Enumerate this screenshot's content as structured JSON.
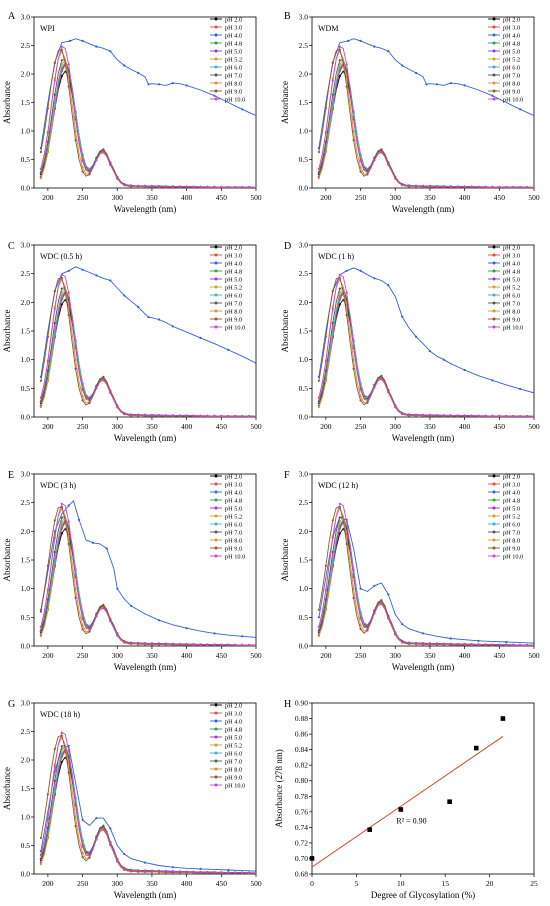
{
  "common": {
    "xlabel": "Wavelength (nm)",
    "ylabel": "Absorbance",
    "xlim": [
      180,
      500
    ],
    "xticks": [
      200,
      250,
      300,
      350,
      400,
      450,
      500
    ],
    "ylim": [
      0,
      3.0
    ],
    "yticks": [
      0.0,
      0.5,
      1.0,
      1.5,
      2.0,
      2.5,
      3.0
    ],
    "series_names": [
      "pH 2.0",
      "pH 3.0",
      "pH 4.0",
      "pH 4.8",
      "pH 5.0",
      "pH 5.2",
      "pH 6.0",
      "pH 7.0",
      "pH 8.0",
      "pH 9.0",
      "pH 10.0"
    ],
    "series_colors": [
      "#000000",
      "#e8463c",
      "#2f5fd8",
      "#2e9e3a",
      "#9b30c8",
      "#cda51b",
      "#46aacf",
      "#555555",
      "#d9922b",
      "#8a5a2b",
      "#cc44cc"
    ],
    "peak_heights": [
      2.05,
      2.15,
      2.6,
      2.2,
      2.18,
      2.25,
      2.2,
      2.28,
      2.4,
      2.45,
      2.5
    ],
    "peak_wavelengths": [
      225,
      225,
      218,
      225,
      225,
      224,
      225,
      223,
      220,
      218,
      222
    ]
  },
  "chart_data": [
    {
      "type": "line",
      "panel": "A",
      "title": "WPI",
      "second_peak": 0.68,
      "tail": 0.03,
      "special": {
        "series": "pH 4.0",
        "points": [
          [
            190,
            0.7
          ],
          [
            200,
            1.5
          ],
          [
            210,
            2.2
          ],
          [
            220,
            2.55
          ],
          [
            232,
            2.58
          ],
          [
            240,
            2.62
          ],
          [
            250,
            2.58
          ],
          [
            260,
            2.53
          ],
          [
            270,
            2.48
          ],
          [
            280,
            2.45
          ],
          [
            290,
            2.4
          ],
          [
            300,
            2.25
          ],
          [
            310,
            2.15
          ],
          [
            320,
            2.08
          ],
          [
            330,
            2.02
          ],
          [
            340,
            1.95
          ],
          [
            345,
            1.82
          ],
          [
            350,
            1.83
          ],
          [
            360,
            1.82
          ],
          [
            370,
            1.8
          ],
          [
            380,
            1.84
          ],
          [
            390,
            1.83
          ],
          [
            400,
            1.8
          ],
          [
            420,
            1.72
          ],
          [
            440,
            1.62
          ],
          [
            460,
            1.5
          ],
          [
            480,
            1.38
          ],
          [
            500,
            1.27
          ]
        ]
      }
    },
    {
      "type": "line",
      "panel": "B",
      "title": "WDM",
      "second_peak": 0.68,
      "tail": 0.03,
      "special": {
        "series": "pH 4.0",
        "points": [
          [
            190,
            0.7
          ],
          [
            200,
            1.5
          ],
          [
            210,
            2.2
          ],
          [
            220,
            2.55
          ],
          [
            232,
            2.58
          ],
          [
            240,
            2.62
          ],
          [
            250,
            2.58
          ],
          [
            260,
            2.53
          ],
          [
            270,
            2.48
          ],
          [
            280,
            2.45
          ],
          [
            290,
            2.4
          ],
          [
            300,
            2.25
          ],
          [
            310,
            2.15
          ],
          [
            320,
            2.08
          ],
          [
            330,
            2.02
          ],
          [
            340,
            1.95
          ],
          [
            345,
            1.82
          ],
          [
            350,
            1.83
          ],
          [
            360,
            1.82
          ],
          [
            370,
            1.8
          ],
          [
            380,
            1.84
          ],
          [
            390,
            1.83
          ],
          [
            400,
            1.8
          ],
          [
            420,
            1.72
          ],
          [
            440,
            1.62
          ],
          [
            460,
            1.5
          ],
          [
            480,
            1.38
          ],
          [
            500,
            1.27
          ]
        ]
      }
    },
    {
      "type": "line",
      "panel": "C",
      "title": "WDC (0.5 h)",
      "second_peak": 0.7,
      "tail": 0.03,
      "special": {
        "series": "pH 4.0",
        "points": [
          [
            190,
            0.7
          ],
          [
            200,
            1.5
          ],
          [
            210,
            2.2
          ],
          [
            220,
            2.5
          ],
          [
            230,
            2.55
          ],
          [
            240,
            2.62
          ],
          [
            250,
            2.57
          ],
          [
            260,
            2.52
          ],
          [
            270,
            2.47
          ],
          [
            280,
            2.42
          ],
          [
            290,
            2.38
          ],
          [
            300,
            2.25
          ],
          [
            310,
            2.12
          ],
          [
            320,
            2.02
          ],
          [
            330,
            1.92
          ],
          [
            340,
            1.8
          ],
          [
            345,
            1.74
          ],
          [
            350,
            1.73
          ],
          [
            360,
            1.7
          ],
          [
            370,
            1.65
          ],
          [
            380,
            1.58
          ],
          [
            400,
            1.48
          ],
          [
            420,
            1.38
          ],
          [
            440,
            1.28
          ],
          [
            460,
            1.17
          ],
          [
            480,
            1.06
          ],
          [
            500,
            0.94
          ]
        ]
      }
    },
    {
      "type": "line",
      "panel": "D",
      "title": "WDC (1 h)",
      "second_peak": 0.72,
      "tail": 0.03,
      "special": {
        "series": "pH 4.0",
        "points": [
          [
            190,
            0.7
          ],
          [
            200,
            1.5
          ],
          [
            210,
            2.2
          ],
          [
            220,
            2.48
          ],
          [
            230,
            2.55
          ],
          [
            240,
            2.6
          ],
          [
            250,
            2.55
          ],
          [
            260,
            2.48
          ],
          [
            270,
            2.42
          ],
          [
            280,
            2.38
          ],
          [
            290,
            2.3
          ],
          [
            300,
            2.1
          ],
          [
            310,
            1.75
          ],
          [
            320,
            1.55
          ],
          [
            330,
            1.4
          ],
          [
            340,
            1.28
          ],
          [
            350,
            1.15
          ],
          [
            360,
            1.06
          ],
          [
            370,
            1.0
          ],
          [
            380,
            0.93
          ],
          [
            400,
            0.82
          ],
          [
            420,
            0.72
          ],
          [
            440,
            0.64
          ],
          [
            460,
            0.56
          ],
          [
            480,
            0.49
          ],
          [
            500,
            0.42
          ]
        ]
      }
    },
    {
      "type": "line",
      "panel": "E",
      "title": "WDC (3 h)",
      "second_peak": 0.72,
      "tail": 0.04,
      "special": {
        "series": "pH 4.0",
        "points": [
          [
            190,
            0.6
          ],
          [
            200,
            1.3
          ],
          [
            210,
            2.0
          ],
          [
            220,
            2.3
          ],
          [
            230,
            2.45
          ],
          [
            237,
            2.53
          ],
          [
            245,
            2.2
          ],
          [
            255,
            1.85
          ],
          [
            265,
            1.8
          ],
          [
            275,
            1.78
          ],
          [
            285,
            1.7
          ],
          [
            295,
            1.35
          ],
          [
            300,
            1.0
          ],
          [
            310,
            0.82
          ],
          [
            320,
            0.7
          ],
          [
            340,
            0.56
          ],
          [
            360,
            0.45
          ],
          [
            380,
            0.37
          ],
          [
            400,
            0.31
          ],
          [
            420,
            0.26
          ],
          [
            440,
            0.22
          ],
          [
            460,
            0.19
          ],
          [
            480,
            0.17
          ],
          [
            500,
            0.15
          ]
        ]
      }
    },
    {
      "type": "line",
      "panel": "F",
      "title": "WDC (12 h)",
      "second_peak": 0.8,
      "tail": 0.04,
      "special": {
        "series": "pH 4.0",
        "points": [
          [
            190,
            0.5
          ],
          [
            200,
            1.2
          ],
          [
            210,
            1.9
          ],
          [
            220,
            2.25
          ],
          [
            230,
            2.2
          ],
          [
            240,
            1.7
          ],
          [
            250,
            1.0
          ],
          [
            260,
            0.95
          ],
          [
            270,
            1.05
          ],
          [
            280,
            1.1
          ],
          [
            290,
            0.9
          ],
          [
            300,
            0.55
          ],
          [
            310,
            0.38
          ],
          [
            320,
            0.3
          ],
          [
            340,
            0.22
          ],
          [
            360,
            0.17
          ],
          [
            380,
            0.13
          ],
          [
            400,
            0.11
          ],
          [
            420,
            0.09
          ],
          [
            440,
            0.08
          ],
          [
            460,
            0.07
          ],
          [
            480,
            0.06
          ],
          [
            500,
            0.05
          ]
        ]
      }
    },
    {
      "type": "line",
      "panel": "G",
      "title": "WDC (18 h)",
      "second_peak": 0.85,
      "tail": 0.05,
      "special": {
        "series": "pH 4.0",
        "points": [
          [
            190,
            0.4
          ],
          [
            200,
            1.1
          ],
          [
            210,
            1.8
          ],
          [
            220,
            2.2
          ],
          [
            230,
            2.25
          ],
          [
            240,
            1.6
          ],
          [
            250,
            0.95
          ],
          [
            260,
            0.85
          ],
          [
            270,
            0.98
          ],
          [
            280,
            0.98
          ],
          [
            290,
            0.8
          ],
          [
            300,
            0.5
          ],
          [
            310,
            0.35
          ],
          [
            320,
            0.27
          ],
          [
            340,
            0.2
          ],
          [
            360,
            0.15
          ],
          [
            380,
            0.12
          ],
          [
            400,
            0.1
          ],
          [
            420,
            0.09
          ],
          [
            440,
            0.08
          ],
          [
            460,
            0.07
          ],
          [
            480,
            0.06
          ],
          [
            500,
            0.05
          ]
        ]
      }
    },
    {
      "type": "scatter",
      "panel": "H",
      "xlabel": "Degree of Glycosylation (%)",
      "ylabel": "Absorbance (278 nm)",
      "xlim": [
        0,
        25
      ],
      "ylim": [
        0.68,
        0.9
      ],
      "xticks": [
        0,
        5,
        10,
        15,
        20,
        25
      ],
      "yticks": [
        0.68,
        0.7,
        0.72,
        0.74,
        0.76,
        0.78,
        0.8,
        0.82,
        0.84,
        0.86,
        0.88,
        0.9
      ],
      "points": [
        [
          0,
          0.7
        ],
        [
          6.5,
          0.737
        ],
        [
          10,
          0.763
        ],
        [
          15.5,
          0.773
        ],
        [
          18.5,
          0.842
        ],
        [
          21.5,
          0.88
        ]
      ],
      "fit_line": [
        [
          0,
          0.689
        ],
        [
          21.5,
          0.857
        ]
      ],
      "fit_color": "#cc4a2a",
      "annotation": "R² = 0.90"
    }
  ]
}
